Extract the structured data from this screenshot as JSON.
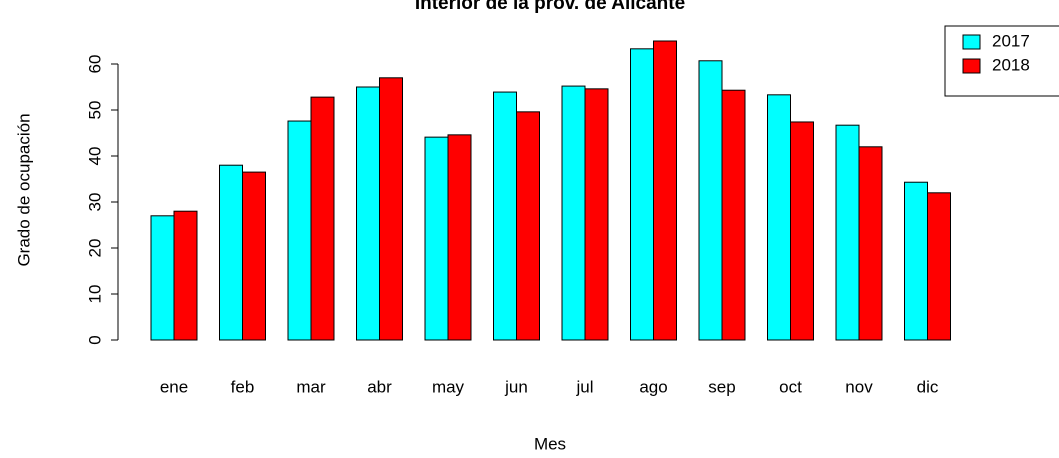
{
  "chart_data": {
    "type": "bar",
    "title": "Interior de la prov. de Alicante",
    "x_label": "Mes",
    "y_label": "Grado de ocupación",
    "categories": [
      "ene",
      "feb",
      "mar",
      "abr",
      "may",
      "jun",
      "jul",
      "ago",
      "sep",
      "oct",
      "nov",
      "dic"
    ],
    "series": [
      {
        "name": "2017",
        "color": "#00ffff",
        "values": [
          27.0,
          38.0,
          47.6,
          55.0,
          44.1,
          53.9,
          55.2,
          63.3,
          60.7,
          53.3,
          46.7,
          34.3
        ]
      },
      {
        "name": "2018",
        "color": "#ff0000",
        "values": [
          28.0,
          36.5,
          52.8,
          57.0,
          44.6,
          49.6,
          54.6,
          65.0,
          54.3,
          47.4,
          42.0,
          32.0
        ]
      }
    ],
    "ylim": [
      0,
      70
    ],
    "yticks": [
      0,
      10,
      20,
      30,
      40,
      50,
      60
    ],
    "legend": "topright"
  }
}
